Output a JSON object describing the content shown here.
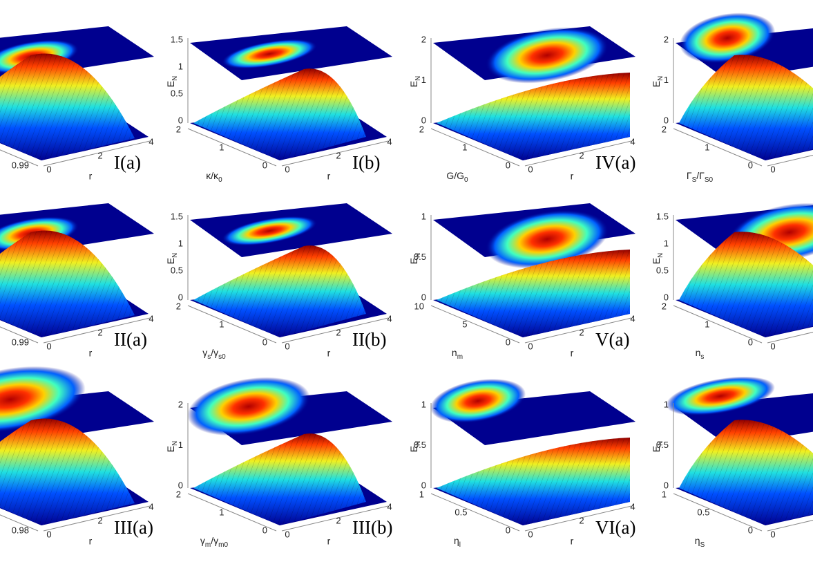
{
  "panels": [
    {
      "label": "I(a)",
      "yticks": [
        0.99
      ],
      "xlabel": "r",
      "xticks": [
        0,
        2,
        4
      ]
    },
    {
      "label": "I(b)",
      "zlabel": [
        {
          "t": "E"
        },
        {
          "sub": "N"
        }
      ],
      "zticks": [
        0,
        0.5,
        1,
        1.5
      ],
      "ylabel": [
        {
          "t": "κ/κ"
        },
        {
          "sub": "0"
        }
      ],
      "yticks": [
        2,
        1,
        0
      ],
      "xlabel": "r",
      "xticks": [
        0,
        2,
        4
      ]
    },
    {
      "label": "IV(a)",
      "zlabel": [
        {
          "t": "E"
        },
        {
          "sub": "N"
        }
      ],
      "zticks": [
        0,
        1,
        2
      ],
      "ylabel": [
        {
          "t": "G/G"
        },
        {
          "sub": "0"
        }
      ],
      "yticks": [
        2,
        1,
        0
      ],
      "xlabel": "r",
      "xticks": [
        0,
        2,
        4
      ]
    },
    {
      "zlabel": [
        {
          "t": "E"
        },
        {
          "sub": "N"
        }
      ],
      "zticks": [
        0,
        1,
        2
      ],
      "ylabel": [
        {
          "t": "Γ"
        },
        {
          "sub": "S"
        },
        {
          "t": "/Γ"
        },
        {
          "sub": "S0"
        }
      ],
      "yticks": [
        2,
        1,
        0
      ],
      "xticks": [
        0
      ]
    },
    {
      "label": "II(a)",
      "yticks": [
        0.99
      ],
      "xlabel": "r",
      "xticks": [
        0,
        2,
        4
      ]
    },
    {
      "label": "II(b)",
      "zlabel": [
        {
          "t": "E"
        },
        {
          "sub": "N"
        }
      ],
      "zticks": [
        0,
        0.5,
        1,
        1.5
      ],
      "ylabel": [
        {
          "t": "γ"
        },
        {
          "sub": "s"
        },
        {
          "t": "/γ"
        },
        {
          "sub": "s0"
        }
      ],
      "yticks": [
        2,
        1,
        0
      ],
      "xlabel": "r",
      "xticks": [
        0,
        2,
        4
      ]
    },
    {
      "label": "V(a)",
      "zlabel": [
        {
          "t": "E"
        },
        {
          "sub": "N"
        }
      ],
      "zticks": [
        0,
        0.5,
        1
      ],
      "ylabel": [
        {
          "t": "n"
        },
        {
          "sub": "m"
        }
      ],
      "yticks": [
        10,
        5,
        0
      ],
      "xlabel": "r",
      "xticks": [
        0,
        2,
        4
      ]
    },
    {
      "zlabel": [
        {
          "t": "E"
        },
        {
          "sub": "N"
        }
      ],
      "zticks": [
        0,
        0.5,
        1,
        1.5
      ],
      "ylabel": [
        {
          "t": "n"
        },
        {
          "sub": "s"
        }
      ],
      "yticks": [
        2,
        1,
        0
      ],
      "xticks": [
        0
      ]
    },
    {
      "label": "III(a)",
      "yticks": [
        0.98
      ],
      "xlabel": "r",
      "xticks": [
        0,
        2,
        4
      ]
    },
    {
      "label": "III(b)",
      "zlabel": [
        {
          "t": "E"
        },
        {
          "sub": "N"
        }
      ],
      "zticks": [
        0,
        1,
        2
      ],
      "ylabel": [
        {
          "t": "γ"
        },
        {
          "sub": "m"
        },
        {
          "t": "/γ"
        },
        {
          "sub": "m0"
        }
      ],
      "yticks": [
        2,
        1,
        0
      ],
      "xlabel": "r",
      "xticks": [
        0,
        2,
        4
      ]
    },
    {
      "label": "VI(a)",
      "zlabel": [
        {
          "t": "E"
        },
        {
          "sub": "N"
        }
      ],
      "zticks": [
        0,
        0.5,
        1
      ],
      "ylabel": [
        {
          "t": "η"
        },
        {
          "sub": "l"
        }
      ],
      "yticks": [
        1,
        0.5,
        0
      ],
      "xlabel": "r",
      "xticks": [
        0,
        2,
        4
      ]
    },
    {
      "zlabel": [
        {
          "t": "E"
        },
        {
          "sub": "N"
        }
      ],
      "zticks": [
        0,
        0.5,
        1
      ],
      "ylabel": [
        {
          "t": "η"
        },
        {
          "sub": "S"
        }
      ],
      "yticks": [
        1,
        0.5,
        0
      ],
      "xticks": [
        0
      ]
    }
  ]
}
